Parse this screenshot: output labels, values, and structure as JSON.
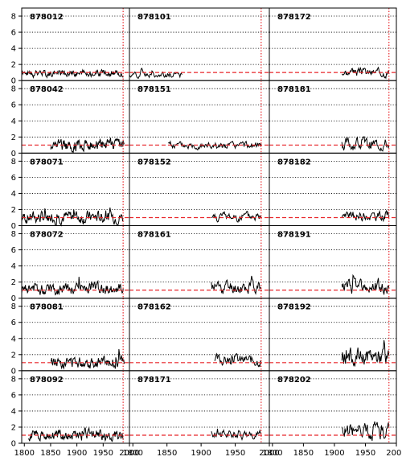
{
  "chart_data": {
    "type": "line",
    "layout": "small-multiples-grid",
    "rows": 6,
    "cols": 3,
    "ylim": [
      0,
      9
    ],
    "yticks": [
      0,
      2,
      4,
      6,
      8
    ],
    "ytick_labels": [
      "0",
      "2",
      "4",
      "6",
      "8"
    ],
    "xlim": [
      1795,
      2000
    ],
    "xticks": [
      1800,
      1850,
      1900,
      1950,
      2000
    ],
    "xtick_labels": [
      "1800",
      "1850",
      "1900",
      "1950",
      "2000"
    ],
    "gridlines_y": [
      2,
      4,
      6,
      8
    ],
    "reference_line_y": 1,
    "reference_line_x": 1988,
    "colors": {
      "series": "#000000",
      "reference": "#e8262a",
      "grid": "#000000",
      "frame": "#000000"
    },
    "panels": [
      {
        "id": "878012",
        "start": 1795,
        "end": 1988,
        "mean": 0.9,
        "amp": 0.35,
        "seed": 1
      },
      {
        "id": "878101",
        "start": 1795,
        "end": 1872,
        "mean": 0.75,
        "amp": 0.3,
        "seed": 2
      },
      {
        "id": "878172",
        "start": 1912,
        "end": 1988,
        "mean": 1.0,
        "amp": 0.4,
        "seed": 3
      },
      {
        "id": "878042",
        "start": 1850,
        "end": 1990,
        "mean": 1.0,
        "amp": 0.6,
        "seed": 4
      },
      {
        "id": "878151",
        "start": 1852,
        "end": 1988,
        "mean": 0.95,
        "amp": 0.35,
        "seed": 5
      },
      {
        "id": "878181",
        "start": 1912,
        "end": 1988,
        "mean": 1.1,
        "amp": 0.6,
        "seed": 6
      },
      {
        "id": "878071",
        "start": 1795,
        "end": 1988,
        "mean": 1.05,
        "amp": 0.6,
        "seed": 7
      },
      {
        "id": "878152",
        "start": 1915,
        "end": 1988,
        "mean": 1.1,
        "amp": 0.45,
        "seed": 8
      },
      {
        "id": "878182",
        "start": 1912,
        "end": 1988,
        "mean": 1.2,
        "amp": 0.45,
        "seed": 9
      },
      {
        "id": "878072",
        "start": 1795,
        "end": 1988,
        "mean": 1.1,
        "amp": 0.55,
        "seed": 10
      },
      {
        "id": "878161",
        "start": 1915,
        "end": 1988,
        "mean": 1.4,
        "amp": 0.7,
        "seed": 11
      },
      {
        "id": "878191",
        "start": 1912,
        "end": 1988,
        "mean": 1.4,
        "amp": 0.7,
        "seed": 12
      },
      {
        "id": "878081",
        "start": 1850,
        "end": 1990,
        "mean": 1.1,
        "amp": 0.55,
        "seed": 13
      },
      {
        "id": "878162",
        "start": 1920,
        "end": 1988,
        "mean": 1.3,
        "amp": 0.55,
        "seed": 14
      },
      {
        "id": "878192",
        "start": 1912,
        "end": 1988,
        "mean": 1.7,
        "amp": 0.85,
        "seed": 15
      },
      {
        "id": "878092",
        "start": 1808,
        "end": 1988,
        "mean": 1.0,
        "amp": 0.5,
        "seed": 16
      },
      {
        "id": "878171",
        "start": 1915,
        "end": 1988,
        "mean": 1.1,
        "amp": 0.45,
        "seed": 17
      },
      {
        "id": "878202",
        "start": 1912,
        "end": 1988,
        "mean": 1.5,
        "amp": 0.8,
        "seed": 18
      }
    ]
  }
}
